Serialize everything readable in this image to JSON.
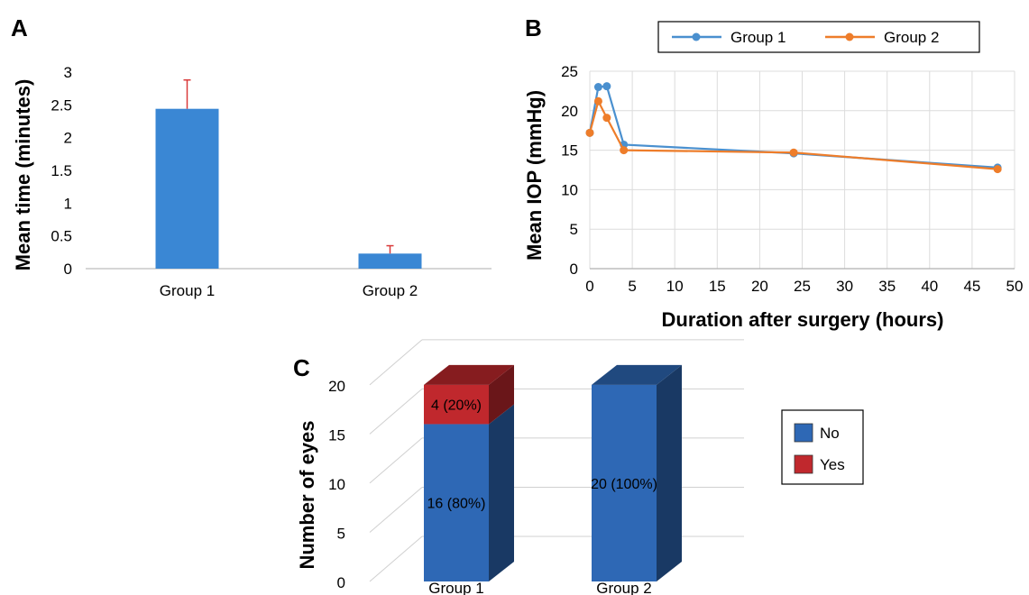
{
  "chart_data": [
    {
      "panel": "A",
      "type": "bar",
      "categories": [
        "Group 1",
        "Group 2"
      ],
      "values": [
        2.44,
        0.23
      ],
      "error_plus": [
        0.44,
        0.12
      ],
      "ylabel": "Mean time (minutes)",
      "xlabel": "",
      "ylim": [
        0,
        3
      ],
      "yticks": [
        "0",
        "0.5",
        "1",
        "1.5",
        "2",
        "2.5",
        "3"
      ],
      "grid": false,
      "colors": {
        "bar": "#3a87d4",
        "error": "#d93a3a"
      }
    },
    {
      "panel": "B",
      "type": "line",
      "xlabel": "Duration after surgery (hours)",
      "ylabel": "Mean IOP (mmHg)",
      "xlim": [
        0,
        50
      ],
      "ylim": [
        0,
        25
      ],
      "xticks": [
        "0",
        "5",
        "10",
        "15",
        "20",
        "25",
        "30",
        "35",
        "40",
        "45",
        "50"
      ],
      "yticks": [
        "0",
        "5",
        "10",
        "15",
        "20",
        "25"
      ],
      "grid": true,
      "legend": "top",
      "series": [
        {
          "name": "Group 1",
          "color": "#4a90cf",
          "x": [
            0,
            1,
            2,
            4,
            24,
            48
          ],
          "y": [
            17.2,
            23.0,
            23.1,
            15.7,
            14.6,
            12.8
          ]
        },
        {
          "name": "Group 2",
          "color": "#ee7d2a",
          "x": [
            0,
            1,
            2,
            4,
            24,
            48
          ],
          "y": [
            17.2,
            21.2,
            19.1,
            15.0,
            14.7,
            12.6
          ]
        }
      ]
    },
    {
      "panel": "C",
      "type": "bar",
      "stacked": true,
      "style": "3d",
      "categories": [
        "Group 1",
        "Group 2"
      ],
      "ylabel": "Number of eyes",
      "ylim": [
        0,
        22
      ],
      "yticks": [
        "0",
        "5",
        "10",
        "15",
        "20"
      ],
      "grid": true,
      "legend": "right",
      "series": [
        {
          "name": "No",
          "color": "#2e68b5",
          "values": [
            16,
            20
          ],
          "labels": [
            "16 (80%)",
            "20 (100%)"
          ]
        },
        {
          "name": "Yes",
          "color": "#c0282d",
          "values": [
            4,
            0
          ],
          "labels": [
            "4 (20%)",
            ""
          ]
        }
      ]
    }
  ]
}
